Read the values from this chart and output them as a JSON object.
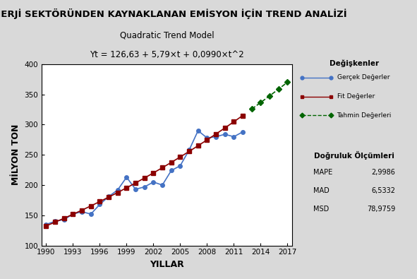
{
  "title": "ENERJİ SEKTÖRÜNDEN KAYNAKLANAN EMİSYON İÇİN TREND ANALİZİ",
  "subtitle1": "Quadratic Trend Model",
  "subtitle2": "Yt = 126,63 + 5,79×t + 0,0990×t^2",
  "xlabel": "YILLAR",
  "ylabel": "MİLYON TON",
  "ylim": [
    100,
    400
  ],
  "xlim": [
    1989.5,
    2017.5
  ],
  "xticks": [
    1990,
    1993,
    1996,
    1999,
    2002,
    2005,
    2008,
    2011,
    2014,
    2017
  ],
  "yticks": [
    100,
    150,
    200,
    250,
    300,
    350,
    400
  ],
  "actual_years": [
    1990,
    1991,
    1992,
    1993,
    1994,
    1995,
    1996,
    1997,
    1998,
    1999,
    2000,
    2001,
    2002,
    2003,
    2004,
    2005,
    2006,
    2007,
    2008,
    2009,
    2010,
    2011,
    2012
  ],
  "actual_values": [
    135,
    140,
    143,
    152,
    156,
    152,
    168,
    181,
    192,
    213,
    193,
    197,
    205,
    200,
    224,
    232,
    258,
    290,
    278,
    280,
    284,
    280,
    288
  ],
  "fit_years": [
    1990,
    1991,
    1992,
    1993,
    1994,
    1995,
    1996,
    1997,
    1998,
    1999,
    2000,
    2001,
    2002,
    2003,
    2004,
    2005,
    2006,
    2007,
    2008,
    2009,
    2010,
    2011,
    2012
  ],
  "fit_values": [
    132.5,
    138.7,
    145.1,
    151.7,
    158.5,
    165.5,
    172.7,
    180.1,
    187.7,
    195.5,
    203.5,
    211.7,
    220.1,
    228.7,
    237.5,
    246.5,
    255.7,
    265.1,
    274.7,
    284.5,
    294.5,
    304.7,
    315.1
  ],
  "forecast_years": [
    2013,
    2014,
    2015,
    2016,
    2017
  ],
  "forecast_values": [
    325.7,
    336.5,
    347.5,
    358.7,
    370.1
  ],
  "actual_color": "#4472C4",
  "fit_color": "#8B0000",
  "forecast_color": "#006400",
  "mape": "2,9986",
  "mad": "6,5332",
  "msd": "78,9759",
  "legend_title": "Değişkenler",
  "legend_actual": "Gerçek Değerler",
  "legend_fit": "Fit Değerler",
  "legend_forecast": "Tahmin Değerleri",
  "accuracy_title": "Doğruluk Ölçümleri",
  "bg_color": "#D9D9D9"
}
